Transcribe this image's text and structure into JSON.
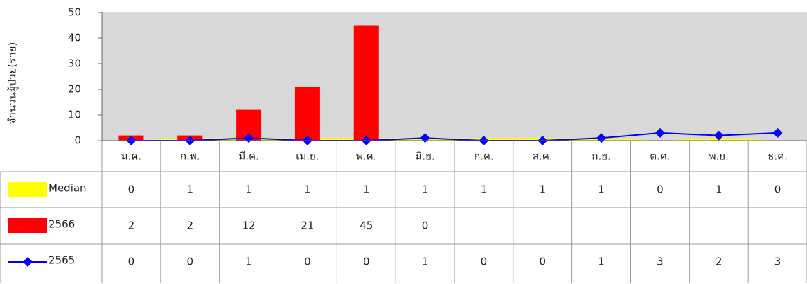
{
  "chart_data": {
    "type": "bar",
    "y_label": "จำนวนผู้ป่วย(ราย)",
    "categories": [
      "ม.ค.",
      "ก.พ.",
      "มี.ค.",
      "เม.ย.",
      "พ.ค.",
      "มิ.ย.",
      "ก.ค.",
      "ส.ค.",
      "ก.ย.",
      "ต.ค.",
      "พ.ย.",
      "ธ.ค."
    ],
    "series": [
      {
        "name": "Median",
        "type": "area",
        "color": "#ffff00",
        "values": [
          0,
          1,
          1,
          1,
          1,
          1,
          1,
          1,
          1,
          0,
          1,
          0
        ]
      },
      {
        "name": "2566",
        "type": "bar",
        "color": "#ff0000",
        "values": [
          2,
          2,
          12,
          21,
          45,
          0,
          null,
          null,
          null,
          null,
          null,
          null
        ]
      },
      {
        "name": "2565",
        "type": "line",
        "color": "#0000ff",
        "values": [
          0,
          0,
          1,
          0,
          0,
          1,
          0,
          0,
          1,
          3,
          2,
          3
        ]
      }
    ],
    "ylim": [
      0,
      50
    ],
    "yticks": [
      0,
      10,
      20,
      30,
      40,
      50
    ],
    "plot_background": "#d9d9d9",
    "data_table": true
  }
}
